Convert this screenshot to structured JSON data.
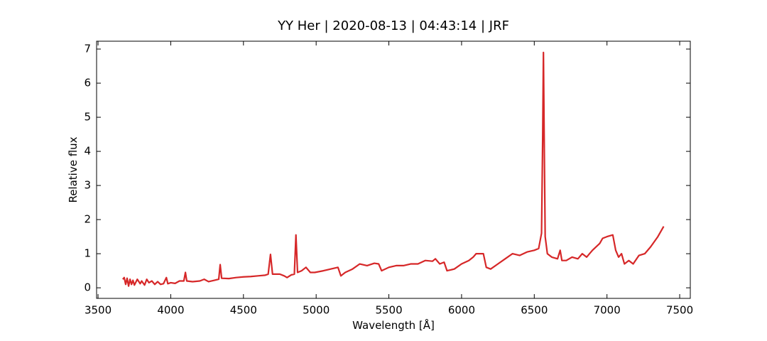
{
  "chart_data": {
    "type": "line",
    "title": "YY Her | 2020-08-13 | 04:43:14 | JRF",
    "xlabel": "Wavelength [Å]",
    "ylabel": "Relative flux",
    "xlim": [
      3490,
      7573
    ],
    "ylim": [
      -0.31,
      7.23
    ],
    "xticks": [
      3500,
      4000,
      4500,
      5000,
      5500,
      6000,
      6500,
      7000,
      7500
    ],
    "yticks": [
      0,
      1,
      2,
      3,
      4,
      5,
      6,
      7
    ],
    "grid": false,
    "series": [
      {
        "name": "YY Her",
        "color": "#d62728",
        "x": [
          3670,
          3680,
          3690,
          3700,
          3710,
          3720,
          3730,
          3740,
          3750,
          3770,
          3790,
          3800,
          3820,
          3835,
          3850,
          3870,
          3890,
          3910,
          3930,
          3950,
          3970,
          3980,
          4000,
          4030,
          4060,
          4090,
          4101,
          4110,
          4150,
          4200,
          4230,
          4260,
          4300,
          4330,
          4340,
          4350,
          4400,
          4450,
          4500,
          4550,
          4600,
          4650,
          4670,
          4686,
          4700,
          4750,
          4780,
          4800,
          4830,
          4850,
          4861,
          4872,
          4900,
          4930,
          4960,
          4990,
          5050,
          5100,
          5150,
          5170,
          5200,
          5250,
          5300,
          5350,
          5400,
          5430,
          5450,
          5500,
          5550,
          5600,
          5650,
          5700,
          5750,
          5800,
          5820,
          5850,
          5880,
          5900,
          5950,
          6000,
          6050,
          6080,
          6100,
          6150,
          6170,
          6200,
          6250,
          6300,
          6350,
          6400,
          6450,
          6500,
          6530,
          6550,
          6558,
          6563,
          6568,
          6575,
          6590,
          6620,
          6660,
          6678,
          6690,
          6720,
          6760,
          6800,
          6830,
          6860,
          6900,
          6950,
          6970,
          7000,
          7040,
          7060,
          7080,
          7100,
          7120,
          7150,
          7180,
          7220,
          7260,
          7300,
          7350,
          7390
        ],
        "values": [
          0.25,
          0.3,
          0.1,
          0.28,
          0.05,
          0.25,
          0.1,
          0.22,
          0.08,
          0.25,
          0.12,
          0.2,
          0.08,
          0.25,
          0.15,
          0.2,
          0.1,
          0.18,
          0.1,
          0.12,
          0.3,
          0.12,
          0.15,
          0.13,
          0.2,
          0.2,
          0.45,
          0.2,
          0.18,
          0.2,
          0.25,
          0.18,
          0.22,
          0.25,
          0.68,
          0.28,
          0.27,
          0.3,
          0.32,
          0.33,
          0.35,
          0.37,
          0.4,
          0.98,
          0.4,
          0.4,
          0.35,
          0.3,
          0.38,
          0.4,
          1.55,
          0.45,
          0.5,
          0.6,
          0.45,
          0.45,
          0.5,
          0.55,
          0.6,
          0.35,
          0.45,
          0.55,
          0.7,
          0.65,
          0.72,
          0.7,
          0.5,
          0.6,
          0.65,
          0.65,
          0.7,
          0.7,
          0.8,
          0.78,
          0.85,
          0.7,
          0.75,
          0.5,
          0.55,
          0.7,
          0.8,
          0.9,
          1.0,
          1.0,
          0.6,
          0.55,
          0.7,
          0.85,
          1.0,
          0.95,
          1.05,
          1.1,
          1.15,
          1.6,
          4.5,
          6.9,
          4.5,
          1.5,
          1.0,
          0.9,
          0.85,
          1.1,
          0.8,
          0.8,
          0.9,
          0.85,
          1.0,
          0.9,
          1.1,
          1.3,
          1.45,
          1.5,
          1.55,
          1.1,
          0.9,
          1.0,
          0.7,
          0.8,
          0.7,
          0.95,
          1.0,
          1.2,
          1.5,
          1.8
        ]
      }
    ]
  }
}
